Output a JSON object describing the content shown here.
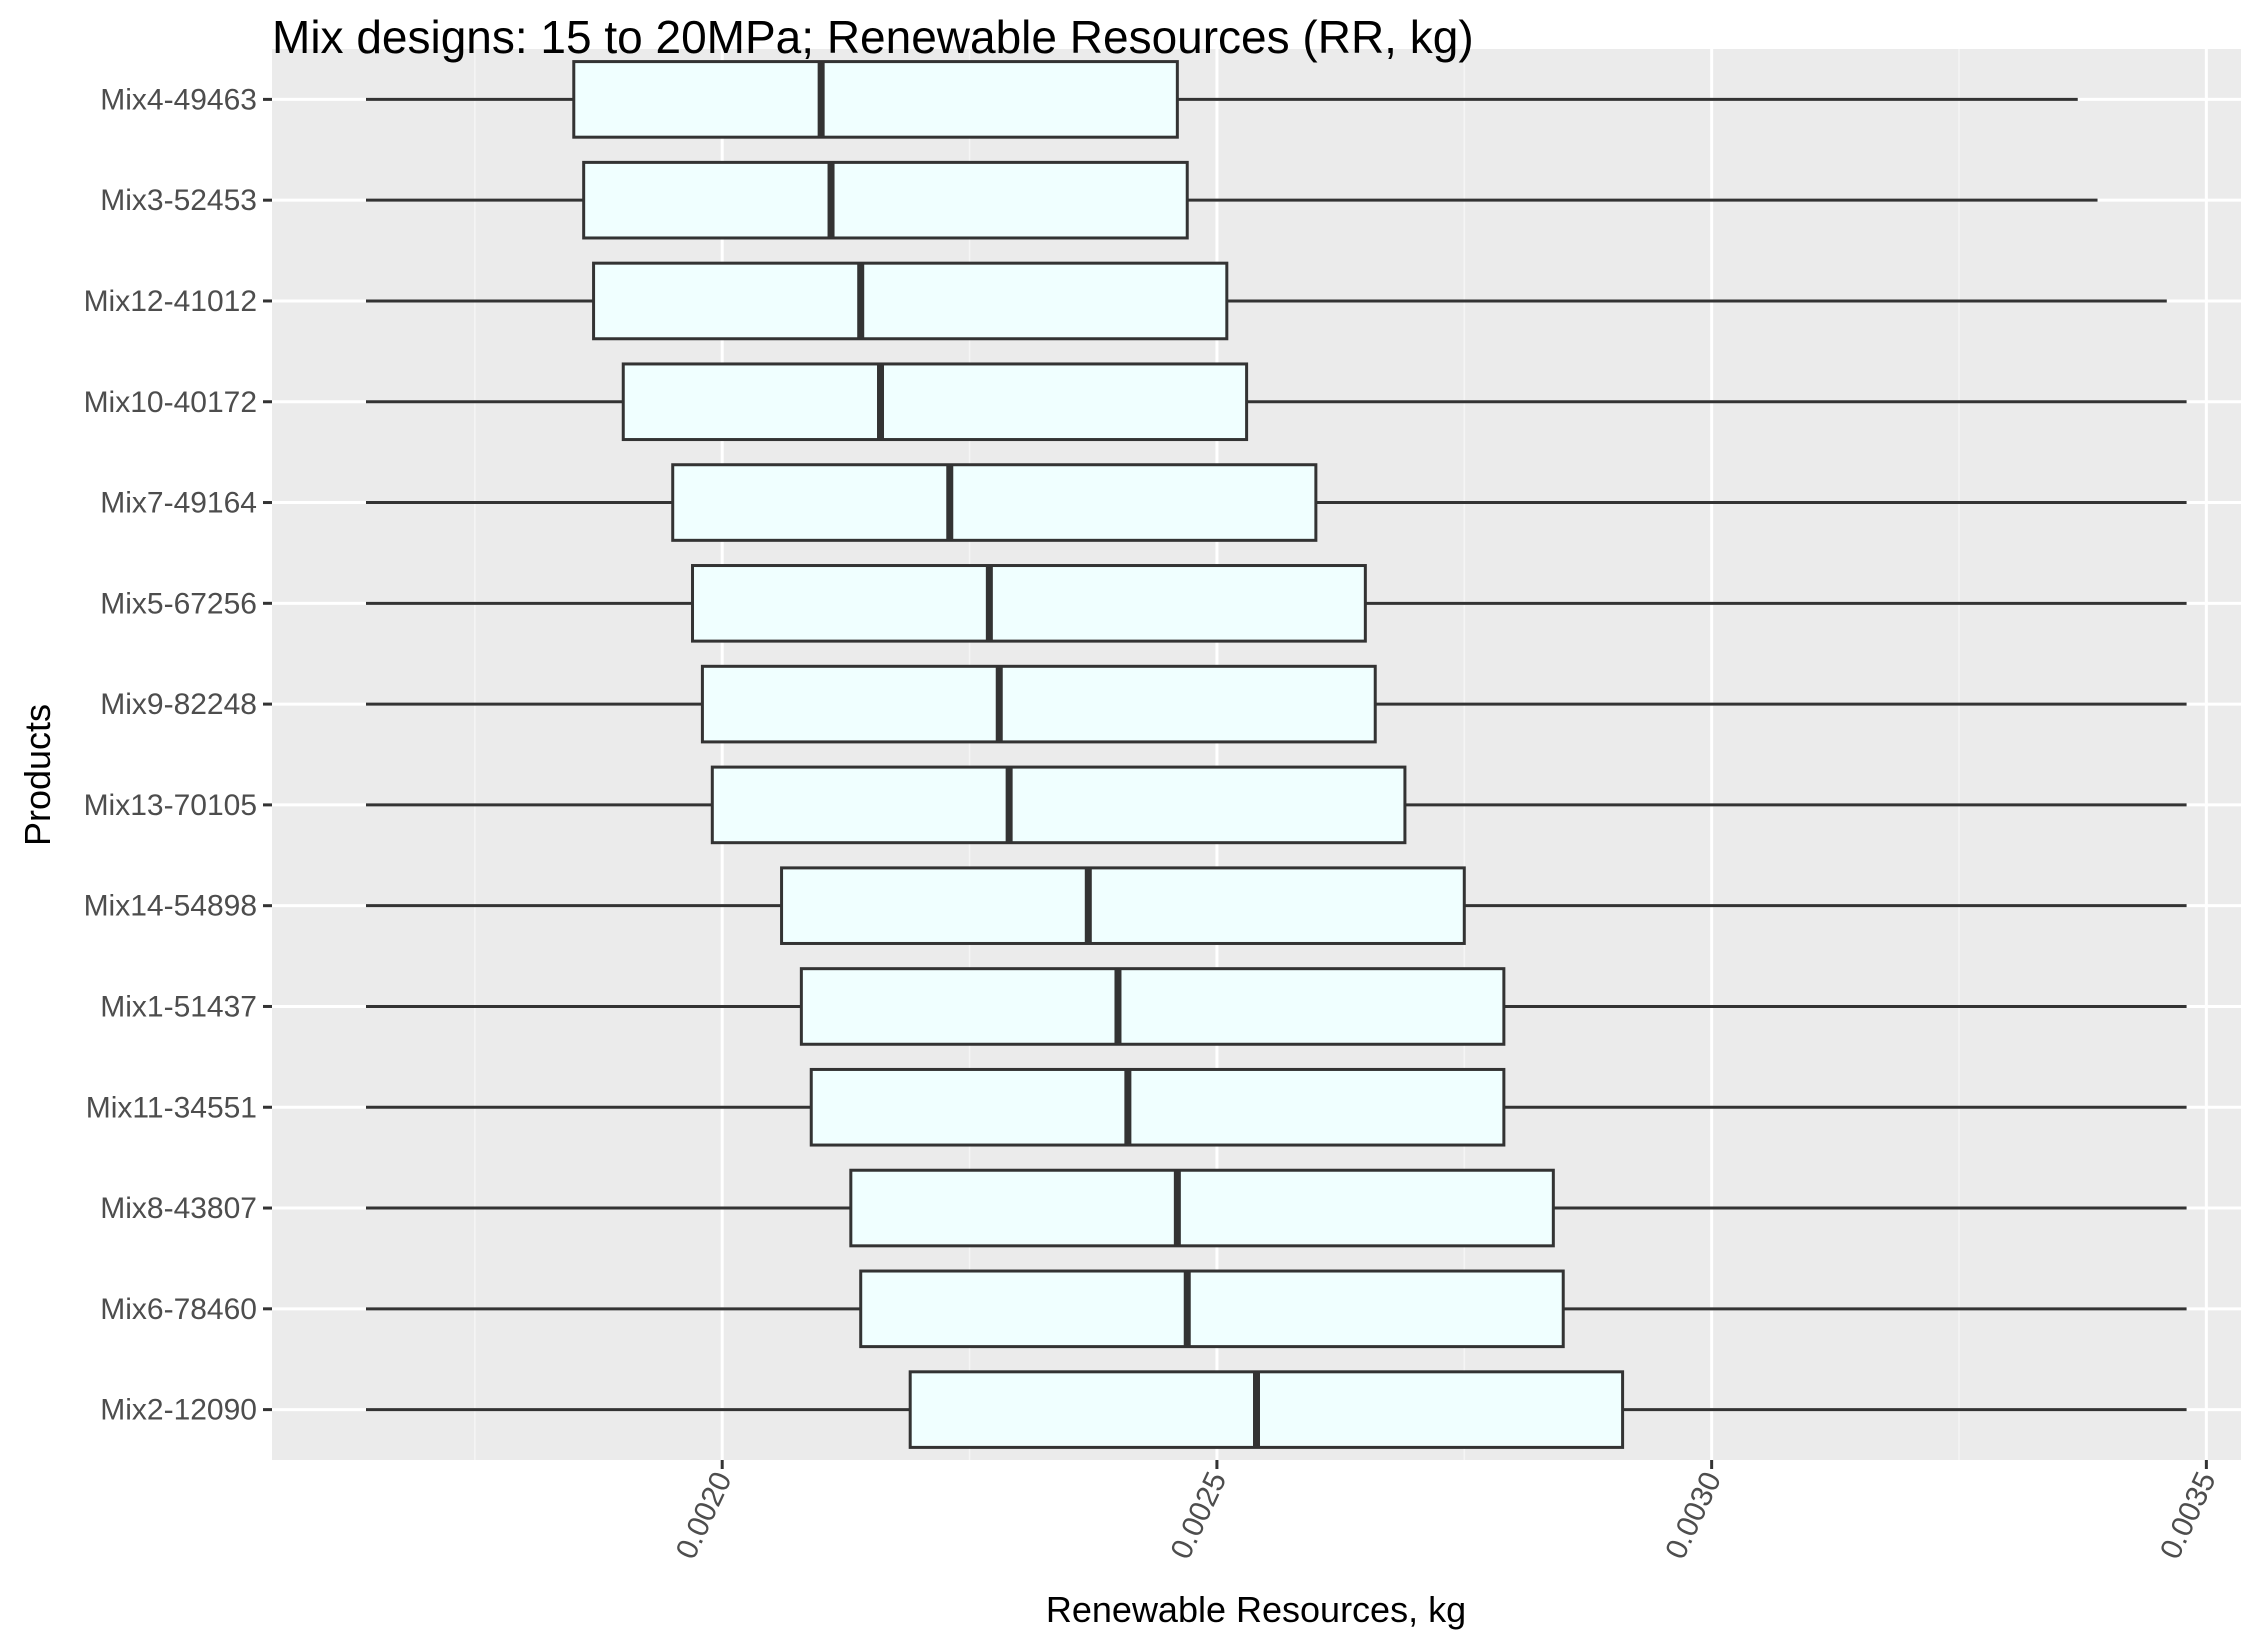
{
  "chart_data": {
    "type": "boxplot",
    "title": "Mix designs: 15 to 20MPa; Renewable Resources (RR, kg)",
    "xlabel": "Renewable Resources, kg",
    "ylabel": "Products",
    "xlim": [
      0.001545,
      0.003535
    ],
    "x_ticks": [
      0.002,
      0.0025,
      0.003,
      0.0035
    ],
    "x_tick_labels": [
      "0.0020",
      "0.0025",
      "0.0030",
      "0.0035"
    ],
    "grid": true,
    "categories": [
      "Mix4-49463",
      "Mix3-52453",
      "Mix12-41012",
      "Mix10-40172",
      "Mix7-49164",
      "Mix5-67256",
      "Mix9-82248",
      "Mix13-70105",
      "Mix14-54898",
      "Mix1-51437",
      "Mix11-34551",
      "Mix8-43807",
      "Mix6-78460",
      "Mix2-12090"
    ],
    "series": [
      {
        "category": "Mix4-49463",
        "min": 0.00164,
        "q1": 0.00185,
        "median": 0.0021,
        "q3": 0.00246,
        "max": 0.00337
      },
      {
        "category": "Mix3-52453",
        "min": 0.00164,
        "q1": 0.00186,
        "median": 0.00211,
        "q3": 0.00247,
        "max": 0.00339
      },
      {
        "category": "Mix12-41012",
        "min": 0.00164,
        "q1": 0.00187,
        "median": 0.00214,
        "q3": 0.00251,
        "max": 0.00346
      },
      {
        "category": "Mix10-40172",
        "min": 0.00164,
        "q1": 0.0019,
        "median": 0.00216,
        "q3": 0.00253,
        "max": 0.00348
      },
      {
        "category": "Mix7-49164",
        "min": 0.00164,
        "q1": 0.00195,
        "median": 0.00223,
        "q3": 0.0026,
        "max": 0.00348
      },
      {
        "category": "Mix5-67256",
        "min": 0.00164,
        "q1": 0.00197,
        "median": 0.00227,
        "q3": 0.00265,
        "max": 0.00348
      },
      {
        "category": "Mix9-82248",
        "min": 0.00164,
        "q1": 0.00198,
        "median": 0.00228,
        "q3": 0.00266,
        "max": 0.00348
      },
      {
        "category": "Mix13-70105",
        "min": 0.00164,
        "q1": 0.00199,
        "median": 0.00229,
        "q3": 0.00269,
        "max": 0.00348
      },
      {
        "category": "Mix14-54898",
        "min": 0.00164,
        "q1": 0.00206,
        "median": 0.00237,
        "q3": 0.00275,
        "max": 0.00348
      },
      {
        "category": "Mix1-51437",
        "min": 0.00164,
        "q1": 0.00208,
        "median": 0.0024,
        "q3": 0.00279,
        "max": 0.00348
      },
      {
        "category": "Mix11-34551",
        "min": 0.00164,
        "q1": 0.00209,
        "median": 0.00241,
        "q3": 0.00279,
        "max": 0.00348
      },
      {
        "category": "Mix8-43807",
        "min": 0.00164,
        "q1": 0.00213,
        "median": 0.00246,
        "q3": 0.00284,
        "max": 0.00348
      },
      {
        "category": "Mix6-78460",
        "min": 0.00164,
        "q1": 0.00214,
        "median": 0.00247,
        "q3": 0.00285,
        "max": 0.00348
      },
      {
        "category": "Mix2-12090",
        "min": 0.00164,
        "q1": 0.00219,
        "median": 0.00254,
        "q3": 0.00291,
        "max": 0.00348
      }
    ],
    "colors": {
      "panel_background": "#ebebeb",
      "box_fill": "#f0ffff",
      "box_outline": "#333333"
    }
  }
}
